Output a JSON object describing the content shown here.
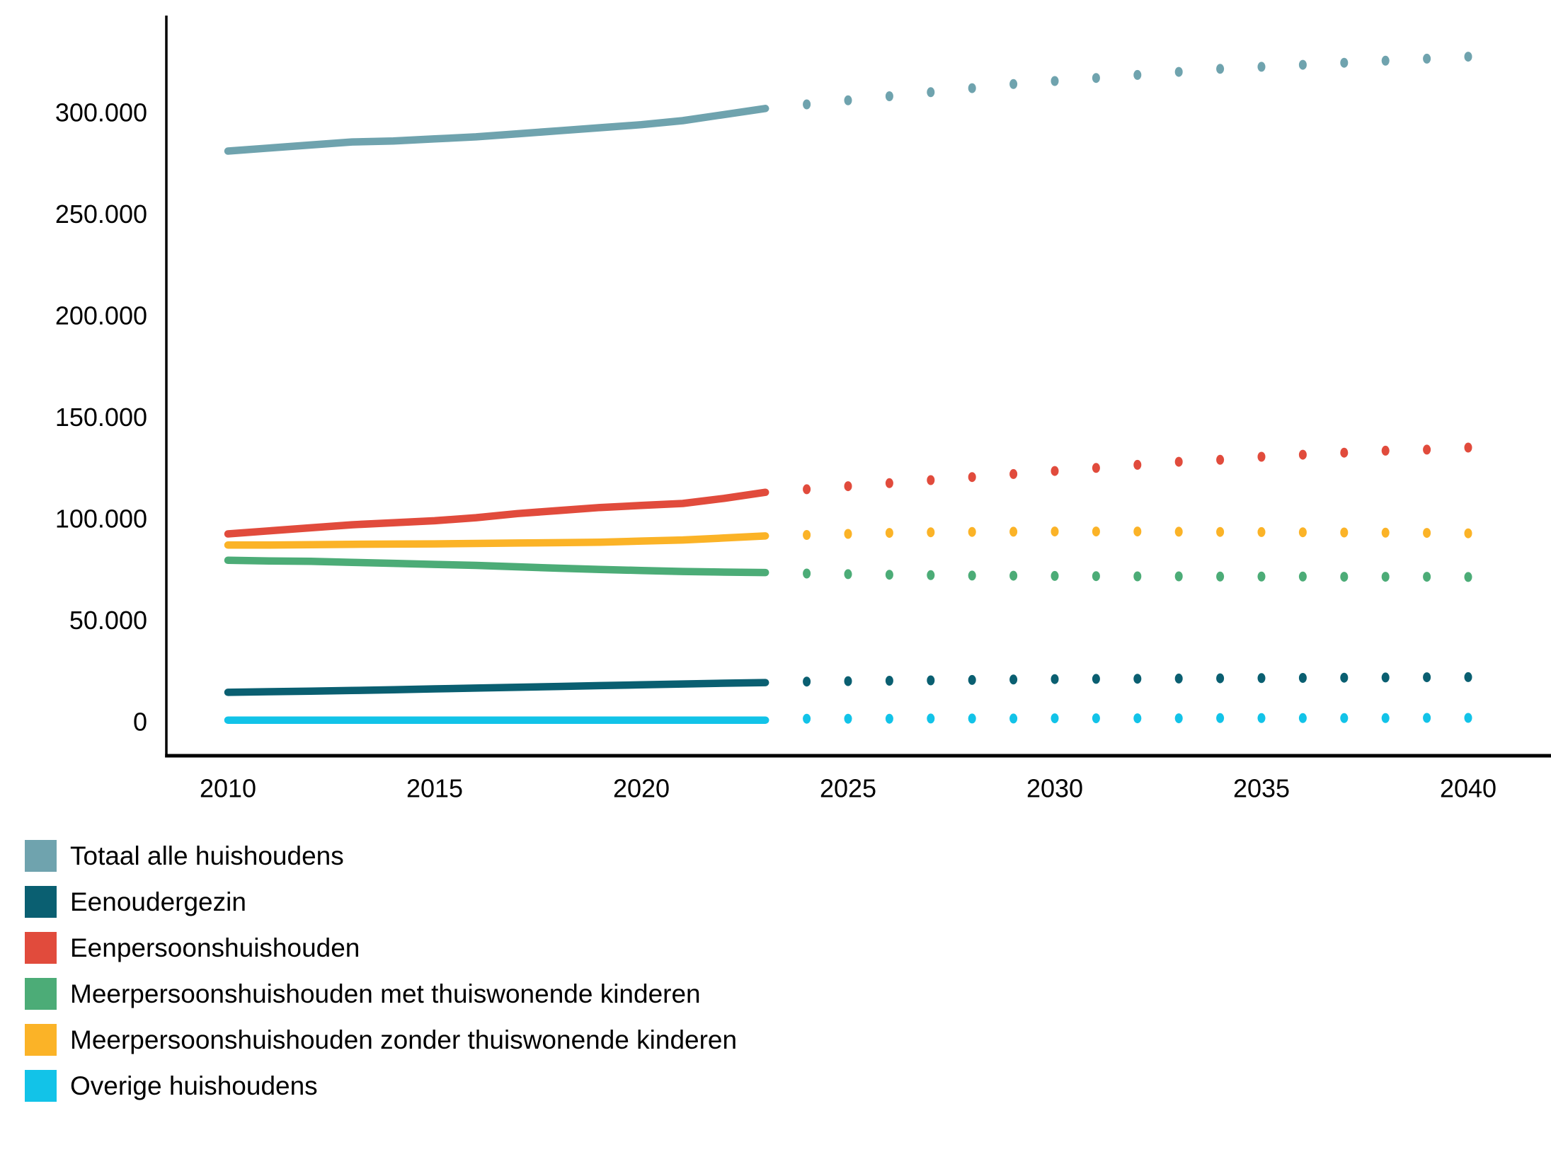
{
  "chart_data": {
    "type": "line",
    "title": "",
    "xlabel": "",
    "ylabel": "",
    "x": [
      2010,
      2011,
      2012,
      2013,
      2014,
      2015,
      2016,
      2017,
      2018,
      2019,
      2020,
      2021,
      2022,
      2023,
      2024,
      2025,
      2026,
      2027,
      2028,
      2029,
      2030,
      2031,
      2032,
      2033,
      2034,
      2035,
      2036,
      2037,
      2038,
      2039,
      2040
    ],
    "observed_through": 2023,
    "forecast_from": 2024,
    "style_note": "solid lines for observed years, dotted points for forecast years",
    "ylim": [
      0,
      350000
    ],
    "grid": false,
    "legend_position": "bottom-left",
    "x_axis": {
      "tick_values": [
        2010,
        2015,
        2020,
        2025,
        2030,
        2035,
        2040
      ],
      "tick_labels": [
        "2010",
        "2015",
        "2020",
        "2025",
        "2030",
        "2035",
        "2040"
      ]
    },
    "y_axis": {
      "tick_values": [
        0,
        50000,
        100000,
        150000,
        200000,
        250000,
        300000
      ],
      "tick_labels": [
        "0",
        "50.000",
        "100.000",
        "150.000",
        "200.000",
        "250.000",
        "300.000"
      ]
    },
    "series": [
      {
        "name": "Totaal alle huishoudens",
        "color": "#6FA3AE",
        "values": [
          281000,
          282500,
          284000,
          285500,
          286000,
          287000,
          288000,
          289500,
          291000,
          292500,
          294000,
          296000,
          299000,
          302000,
          304000,
          306000,
          308000,
          310000,
          312000,
          314000,
          315500,
          317000,
          318500,
          320000,
          321500,
          322500,
          323500,
          324500,
          325500,
          326500,
          327500
        ]
      },
      {
        "name": "Eenoudergezin",
        "color": "#0A5F71",
        "values": [
          14500,
          14800,
          15100,
          15400,
          15800,
          16200,
          16600,
          17000,
          17400,
          17800,
          18200,
          18600,
          19000,
          19300,
          19800,
          20000,
          20200,
          20400,
          20600,
          20800,
          21000,
          21100,
          21200,
          21300,
          21400,
          21500,
          21600,
          21700,
          21800,
          21900,
          22000
        ]
      },
      {
        "name": "Eenpersoonshuishouden",
        "color": "#E14B3C",
        "values": [
          92500,
          94000,
          95500,
          97000,
          98000,
          99000,
          100500,
          102500,
          104000,
          105500,
          106500,
          107500,
          110000,
          113000,
          114500,
          116000,
          117500,
          119000,
          120500,
          122000,
          123500,
          125000,
          126500,
          128000,
          129000,
          130500,
          131500,
          132500,
          133500,
          134000,
          135000
        ]
      },
      {
        "name": "Meerpersoonshuishouden met thuiswonende kinderen",
        "color": "#4CAC77",
        "values": [
          79500,
          79200,
          79000,
          78500,
          78000,
          77500,
          77000,
          76300,
          75600,
          75000,
          74500,
          74000,
          73700,
          73500,
          73000,
          72700,
          72400,
          72200,
          72000,
          71900,
          71800,
          71700,
          71600,
          71600,
          71500,
          71500,
          71500,
          71400,
          71400,
          71400,
          71300
        ]
      },
      {
        "name": "Meerpersoonshuishouden zonder thuiswonende kinderen",
        "color": "#FBB327",
        "values": [
          87000,
          87000,
          87200,
          87400,
          87500,
          87600,
          87800,
          88000,
          88200,
          88400,
          89000,
          89500,
          90500,
          91500,
          92000,
          92500,
          93000,
          93300,
          93500,
          93600,
          93700,
          93700,
          93700,
          93600,
          93500,
          93400,
          93300,
          93200,
          93100,
          93000,
          92800
        ]
      },
      {
        "name": "Overige huishoudens",
        "color": "#12C3E8",
        "values": [
          800,
          800,
          800,
          800,
          800,
          800,
          800,
          800,
          800,
          800,
          800,
          800,
          800,
          800,
          1500,
          1500,
          1500,
          1600,
          1600,
          1600,
          1700,
          1700,
          1700,
          1700,
          1800,
          1800,
          1800,
          1800,
          1800,
          1900,
          1900
        ]
      }
    ]
  },
  "legend": {
    "items": [
      {
        "label": "Totaal alle huishoudens",
        "color": "#6FA3AE"
      },
      {
        "label": "Eenoudergezin",
        "color": "#0A5F71"
      },
      {
        "label": "Eenpersoonshuishouden",
        "color": "#E14B3C"
      },
      {
        "label": "Meerpersoonshuishouden met thuiswonende kinderen",
        "color": "#4CAC77"
      },
      {
        "label": "Meerpersoonshuishouden zonder thuiswonende kinderen",
        "color": "#FBB327"
      },
      {
        "label": "Overige huishoudens",
        "color": "#12C3E8"
      }
    ]
  }
}
